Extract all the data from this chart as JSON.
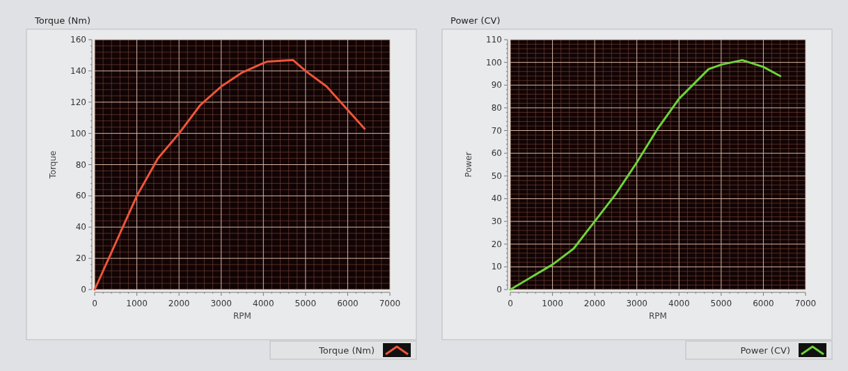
{
  "chart_data": [
    {
      "type": "line",
      "title": "Torque (Nm)",
      "xlabel": "RPM",
      "ylabel": "Torque",
      "x": [
        0,
        1000,
        1500,
        2000,
        2500,
        3000,
        3500,
        4000,
        4100,
        4700,
        5000,
        5500,
        6000,
        6400
      ],
      "series": [
        {
          "name": "Torque (Nm)",
          "color": "#f0553a",
          "values": [
            0,
            60,
            84,
            100,
            118,
            130,
            139,
            145,
            146,
            147,
            140,
            130,
            115,
            103
          ]
        }
      ],
      "xlim": [
        0,
        7000
      ],
      "xticks": [
        0,
        {
          "value": 200,
          "label": null
        },
        {
          "value": 400,
          "label": null
        },
        {
          "value": 600,
          "label": null
        },
        {
          "value": 800,
          "label": null
        },
        1000,
        {
          "value": 1200,
          "label": null
        },
        {
          "value": 1400,
          "label": null
        },
        {
          "value": 1600,
          "label": null
        },
        {
          "value": 1800,
          "label": null
        },
        2000,
        {
          "value": 2200,
          "label": null
        },
        {
          "value": 2400,
          "label": null
        },
        {
          "value": 2600,
          "label": null
        },
        {
          "value": 2800,
          "label": null
        },
        3000,
        {
          "value": 3200,
          "label": null
        },
        {
          "value": 3400,
          "label": null
        },
        {
          "value": 3600,
          "label": null
        },
        {
          "value": 3800,
          "label": null
        },
        4000,
        {
          "value": 4200,
          "label": null
        },
        {
          "value": 4400,
          "label": null
        },
        {
          "value": 4600,
          "label": null
        },
        {
          "value": 4800,
          "label": null
        },
        5000,
        {
          "value": 5200,
          "label": null
        },
        {
          "value": 5400,
          "label": null
        },
        {
          "value": 5600,
          "label": null
        },
        {
          "value": 5800,
          "label": null
        },
        6000,
        {
          "value": 6200,
          "label": null
        },
        {
          "value": 6400,
          "label": null
        },
        {
          "value": 6600,
          "label": null
        },
        {
          "value": 6800,
          "label": null
        },
        7000
      ],
      "ylim": [
        0,
        160
      ],
      "yticks": [
        0,
        {
          "value": 4,
          "label": null
        },
        {
          "value": 8,
          "label": null
        },
        {
          "value": 12,
          "label": null
        },
        {
          "value": 16,
          "label": null
        },
        20,
        {
          "value": 24,
          "label": null
        },
        {
          "value": 28,
          "label": null
        },
        {
          "value": 32,
          "label": null
        },
        {
          "value": 36,
          "label": null
        },
        40,
        {
          "value": 44,
          "label": null
        },
        {
          "value": 48,
          "label": null
        },
        {
          "value": 52,
          "label": null
        },
        {
          "value": 56,
          "label": null
        },
        60,
        {
          "value": 64,
          "label": null
        },
        {
          "value": 68,
          "label": null
        },
        {
          "value": 72,
          "label": null
        },
        {
          "value": 76,
          "label": null
        },
        80,
        {
          "value": 84,
          "label": null
        },
        {
          "value": 88,
          "label": null
        },
        {
          "value": 92,
          "label": null
        },
        {
          "value": 96,
          "label": null
        },
        100,
        {
          "value": 104,
          "label": null
        },
        {
          "value": 108,
          "label": null
        },
        {
          "value": 112,
          "label": null
        },
        {
          "value": 116,
          "label": null
        },
        120,
        {
          "value": 124,
          "label": null
        },
        {
          "value": 128,
          "label": null
        },
        {
          "value": 132,
          "label": null
        },
        {
          "value": 136,
          "label": null
        },
        140,
        {
          "value": 144,
          "label": null
        },
        {
          "value": 148,
          "label": null
        },
        {
          "value": 152,
          "label": null
        },
        {
          "value": 156,
          "label": null
        },
        160
      ],
      "grid": true,
      "legend": "bottom right"
    },
    {
      "type": "line",
      "title": "Power (CV)",
      "xlabel": "RPM",
      "ylabel": "Power",
      "x": [
        0,
        1000,
        1500,
        2000,
        2500,
        3000,
        3500,
        4000,
        4700,
        5000,
        5500,
        6000,
        6400
      ],
      "series": [
        {
          "name": "Power (CV)",
          "color": "#6fd43a",
          "values": [
            0,
            11,
            18,
            30,
            42,
            56,
            71,
            84,
            97,
            99,
            101,
            98,
            94
          ]
        }
      ],
      "xlim": [
        0,
        7000
      ],
      "xticks": [
        0,
        {
          "value": 200,
          "label": null
        },
        {
          "value": 400,
          "label": null
        },
        {
          "value": 600,
          "label": null
        },
        {
          "value": 800,
          "label": null
        },
        1000,
        {
          "value": 1200,
          "label": null
        },
        {
          "value": 1400,
          "label": null
        },
        {
          "value": 1600,
          "label": null
        },
        {
          "value": 1800,
          "label": null
        },
        2000,
        {
          "value": 2200,
          "label": null
        },
        {
          "value": 2400,
          "label": null
        },
        {
          "value": 2600,
          "label": null
        },
        {
          "value": 2800,
          "label": null
        },
        3000,
        {
          "value": 3200,
          "label": null
        },
        {
          "value": 3400,
          "label": null
        },
        {
          "value": 3600,
          "label": null
        },
        {
          "value": 3800,
          "label": null
        },
        4000,
        {
          "value": 4200,
          "label": null
        },
        {
          "value": 4400,
          "label": null
        },
        {
          "value": 4600,
          "label": null
        },
        {
          "value": 4800,
          "label": null
        },
        5000,
        {
          "value": 5200,
          "label": null
        },
        {
          "value": 5400,
          "label": null
        },
        {
          "value": 5600,
          "label": null
        },
        {
          "value": 5800,
          "label": null
        },
        6000,
        {
          "value": 6200,
          "label": null
        },
        {
          "value": 6400,
          "label": null
        },
        {
          "value": 6600,
          "label": null
        },
        {
          "value": 6800,
          "label": null
        },
        7000
      ],
      "ylim": [
        0,
        110
      ],
      "yticks": [
        0,
        {
          "value": 2,
          "label": null
        },
        {
          "value": 4,
          "label": null
        },
        {
          "value": 6,
          "label": null
        },
        {
          "value": 8,
          "label": null
        },
        10,
        {
          "value": 12,
          "label": null
        },
        {
          "value": 14,
          "label": null
        },
        {
          "value": 16,
          "label": null
        },
        {
          "value": 18,
          "label": null
        },
        20,
        {
          "value": 22,
          "label": null
        },
        {
          "value": 24,
          "label": null
        },
        {
          "value": 26,
          "label": null
        },
        {
          "value": 28,
          "label": null
        },
        30,
        {
          "value": 32,
          "label": null
        },
        {
          "value": 34,
          "label": null
        },
        {
          "value": 36,
          "label": null
        },
        {
          "value": 38,
          "label": null
        },
        40,
        {
          "value": 42,
          "label": null
        },
        {
          "value": 44,
          "label": null
        },
        {
          "value": 46,
          "label": null
        },
        {
          "value": 48,
          "label": null
        },
        50,
        {
          "value": 52,
          "label": null
        },
        {
          "value": 54,
          "label": null
        },
        {
          "value": 56,
          "label": null
        },
        {
          "value": 58,
          "label": null
        },
        60,
        {
          "value": 62,
          "label": null
        },
        {
          "value": 64,
          "label": null
        },
        {
          "value": 66,
          "label": null
        },
        {
          "value": 68,
          "label": null
        },
        70,
        {
          "value": 72,
          "label": null
        },
        {
          "value": 74,
          "label": null
        },
        {
          "value": 76,
          "label": null
        },
        {
          "value": 78,
          "label": null
        },
        80,
        {
          "value": 82,
          "label": null
        },
        {
          "value": 84,
          "label": null
        },
        {
          "value": 86,
          "label": null
        },
        {
          "value": 88,
          "label": null
        },
        90,
        {
          "value": 92,
          "label": null
        },
        {
          "value": 94,
          "label": null
        },
        {
          "value": 96,
          "label": null
        },
        {
          "value": 98,
          "label": null
        },
        100,
        {
          "value": 102,
          "label": null
        },
        {
          "value": 104,
          "label": null
        },
        {
          "value": 106,
          "label": null
        },
        {
          "value": 108,
          "label": null
        },
        110
      ],
      "grid": true,
      "legend": "bottom right"
    }
  ]
}
